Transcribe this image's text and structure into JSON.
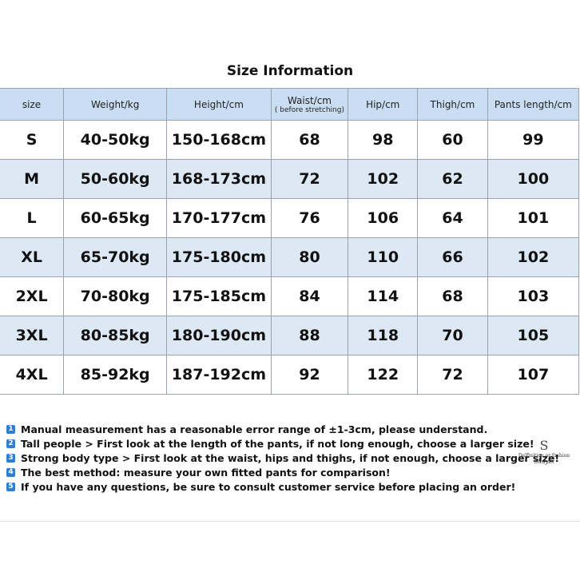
{
  "header": {
    "title": "Size Information"
  },
  "table": {
    "columns": [
      {
        "label": "size"
      },
      {
        "label": "Weight/kg"
      },
      {
        "label": "Height/cm"
      },
      {
        "label": "Waist/cm",
        "note": "( before stretching)"
      },
      {
        "label": "Hip/cm"
      },
      {
        "label": "Thigh/cm"
      },
      {
        "label": "Pants length/cm"
      }
    ],
    "rows": [
      [
        "S",
        "40-50kg",
        "150-168cm",
        "68",
        "98",
        "60",
        "99"
      ],
      [
        "M",
        "50-60kg",
        "168-173cm",
        "72",
        "102",
        "62",
        "100"
      ],
      [
        "L",
        "60-65kg",
        "170-177cm",
        "76",
        "106",
        "64",
        "101"
      ],
      [
        "XL",
        "65-70kg",
        "175-180cm",
        "80",
        "110",
        "66",
        "102"
      ],
      [
        "2XL",
        "70-80kg",
        "175-185cm",
        "84",
        "114",
        "68",
        "103"
      ],
      [
        "3XL",
        "80-85kg",
        "180-190cm",
        "88",
        "118",
        "70",
        "105"
      ],
      [
        "4XL",
        "85-92kg",
        "187-192cm",
        "92",
        "122",
        "72",
        "107"
      ]
    ]
  },
  "notes": [
    {
      "number": "1",
      "text": "Manual measurement has a reasonable error range of ±1-3cm, please understand."
    },
    {
      "number": "2",
      "text": "Tall people > First look at the length of the pants, if not long enough, choose a larger size!"
    },
    {
      "number": "3",
      "text": "Strong body type > First look at the waist, hips and thighs, if not enough, choose a larger size!"
    },
    {
      "number": "4",
      "text": "The best method: measure your own fitted pants for comparison!"
    },
    {
      "number": "5",
      "text": "If you have any questions, be sure to consult customer service before placing an order!"
    }
  ],
  "logo": {
    "mark": "S",
    "tagline": "Delfinition or fashion",
    "brand": "Shuyin"
  }
}
